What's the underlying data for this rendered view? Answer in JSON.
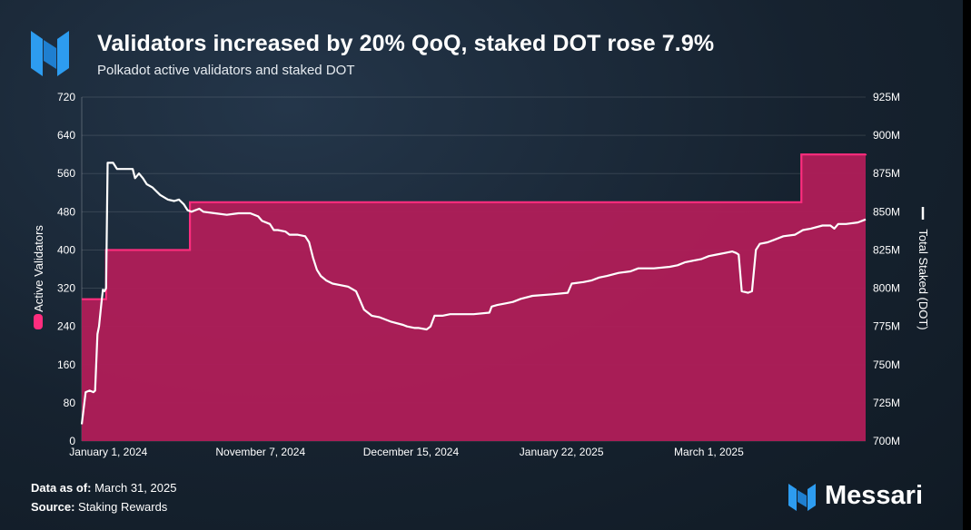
{
  "header": {
    "title": "Validators increased by 20% QoQ, staked DOT rose 7.9%",
    "subtitle": "Polkadot active validators and staked DOT"
  },
  "footer": {
    "data_as_of_label": "Data as of:",
    "data_as_of_value": "March 31, 2025",
    "source_label": "Source:",
    "source_value": "Staking Rewards",
    "brand": "Messari"
  },
  "colors": {
    "validators_fill": "#b01e59",
    "validators_line": "#ff2d7e",
    "staked_line": "#ffffff",
    "brand_blue": "#2d9cf0",
    "background": "#16222f"
  },
  "icons": {
    "header_logo": "messari-logo-icon",
    "footer_logo": "messari-logo-icon"
  },
  "chart_data": {
    "type": "area",
    "title": "Validators increased by 20% QoQ, staked DOT rose 7.9%",
    "subtitle": "Polkadot active validators and staked DOT",
    "x_tick_labels": [
      "January 1, 2024",
      "November 7, 2024",
      "December 15, 2024",
      "January 22, 2025",
      "March 1, 2025"
    ],
    "y_left": {
      "label": "Active Validators",
      "range": [
        0,
        720
      ],
      "ticks": [
        "0",
        "80",
        "160",
        "240",
        "320",
        "400",
        "480",
        "560",
        "640",
        "720"
      ]
    },
    "y_right": {
      "label": "Total Staked (DOT)",
      "range": [
        700,
        925
      ],
      "unit": "M",
      "ticks": [
        "700M",
        "725M",
        "750M",
        "775M",
        "800M",
        "825M",
        "850M",
        "875M",
        "900M",
        "925M"
      ]
    },
    "grid": true,
    "legend": [
      "left axis label marker (pink)",
      "right axis label marker (white)"
    ],
    "series": [
      {
        "name": "Active Validators",
        "type": "step-area",
        "axis": "left",
        "points": [
          [
            0.0,
            297
          ],
          [
            0.03,
            297
          ],
          [
            0.031,
            400
          ],
          [
            0.137,
            400
          ],
          [
            0.138,
            500
          ],
          [
            0.915,
            500
          ],
          [
            0.918,
            600
          ],
          [
            1.0,
            601
          ]
        ]
      },
      {
        "name": "Total Staked (DOT)",
        "type": "line",
        "axis": "right",
        "points": [
          [
            0.0,
            711
          ],
          [
            0.005,
            732
          ],
          [
            0.01,
            733
          ],
          [
            0.015,
            732
          ],
          [
            0.017,
            733
          ],
          [
            0.02,
            770
          ],
          [
            0.022,
            775
          ],
          [
            0.025,
            790
          ],
          [
            0.027,
            799
          ],
          [
            0.029,
            798
          ],
          [
            0.031,
            800
          ],
          [
            0.033,
            882
          ],
          [
            0.036,
            882
          ],
          [
            0.04,
            882
          ],
          [
            0.045,
            878
          ],
          [
            0.065,
            878
          ],
          [
            0.068,
            872
          ],
          [
            0.073,
            875
          ],
          [
            0.078,
            872
          ],
          [
            0.083,
            868
          ],
          [
            0.09,
            866
          ],
          [
            0.1,
            861
          ],
          [
            0.11,
            858
          ],
          [
            0.118,
            857
          ],
          [
            0.124,
            858
          ],
          [
            0.13,
            855
          ],
          [
            0.135,
            851
          ],
          [
            0.14,
            850
          ],
          [
            0.145,
            851
          ],
          [
            0.15,
            852
          ],
          [
            0.155,
            850
          ],
          [
            0.17,
            849
          ],
          [
            0.185,
            848
          ],
          [
            0.2,
            849
          ],
          [
            0.215,
            849
          ],
          [
            0.225,
            847
          ],
          [
            0.23,
            844
          ],
          [
            0.24,
            842
          ],
          [
            0.245,
            838
          ],
          [
            0.25,
            838
          ],
          [
            0.26,
            837
          ],
          [
            0.265,
            835
          ],
          [
            0.275,
            835
          ],
          [
            0.285,
            834
          ],
          [
            0.29,
            830
          ],
          [
            0.295,
            820
          ],
          [
            0.3,
            812
          ],
          [
            0.305,
            808
          ],
          [
            0.312,
            805
          ],
          [
            0.32,
            803
          ],
          [
            0.33,
            802
          ],
          [
            0.34,
            801
          ],
          [
            0.35,
            798
          ],
          [
            0.355,
            792
          ],
          [
            0.36,
            786
          ],
          [
            0.37,
            782
          ],
          [
            0.38,
            781
          ],
          [
            0.395,
            778
          ],
          [
            0.41,
            776
          ],
          [
            0.415,
            775
          ],
          [
            0.425,
            774
          ],
          [
            0.43,
            774
          ],
          [
            0.44,
            773
          ],
          [
            0.445,
            775
          ],
          [
            0.45,
            782
          ],
          [
            0.46,
            782
          ],
          [
            0.47,
            783
          ],
          [
            0.48,
            783
          ],
          [
            0.5,
            783
          ],
          [
            0.52,
            784
          ],
          [
            0.523,
            788
          ],
          [
            0.53,
            789
          ],
          [
            0.54,
            790
          ],
          [
            0.55,
            791
          ],
          [
            0.56,
            793
          ],
          [
            0.575,
            795
          ],
          [
            0.6,
            796
          ],
          [
            0.62,
            797
          ],
          [
            0.625,
            803
          ],
          [
            0.64,
            804
          ],
          [
            0.65,
            805
          ],
          [
            0.66,
            807
          ],
          [
            0.67,
            808
          ],
          [
            0.685,
            810
          ],
          [
            0.7,
            811
          ],
          [
            0.71,
            813
          ],
          [
            0.73,
            813
          ],
          [
            0.75,
            814
          ],
          [
            0.76,
            815
          ],
          [
            0.77,
            817
          ],
          [
            0.78,
            818
          ],
          [
            0.79,
            819
          ],
          [
            0.8,
            821
          ],
          [
            0.81,
            822
          ],
          [
            0.82,
            823
          ],
          [
            0.83,
            824
          ],
          [
            0.835,
            823
          ],
          [
            0.838,
            822
          ],
          [
            0.842,
            798
          ],
          [
            0.85,
            797
          ],
          [
            0.855,
            798
          ],
          [
            0.86,
            825
          ],
          [
            0.865,
            829
          ],
          [
            0.875,
            830
          ],
          [
            0.885,
            832
          ],
          [
            0.895,
            834
          ],
          [
            0.91,
            835
          ],
          [
            0.92,
            838
          ],
          [
            0.93,
            839
          ],
          [
            0.945,
            841
          ],
          [
            0.955,
            841
          ],
          [
            0.96,
            839
          ],
          [
            0.965,
            842
          ],
          [
            0.975,
            842
          ],
          [
            0.99,
            843
          ],
          [
            1.0,
            845
          ]
        ]
      }
    ]
  }
}
